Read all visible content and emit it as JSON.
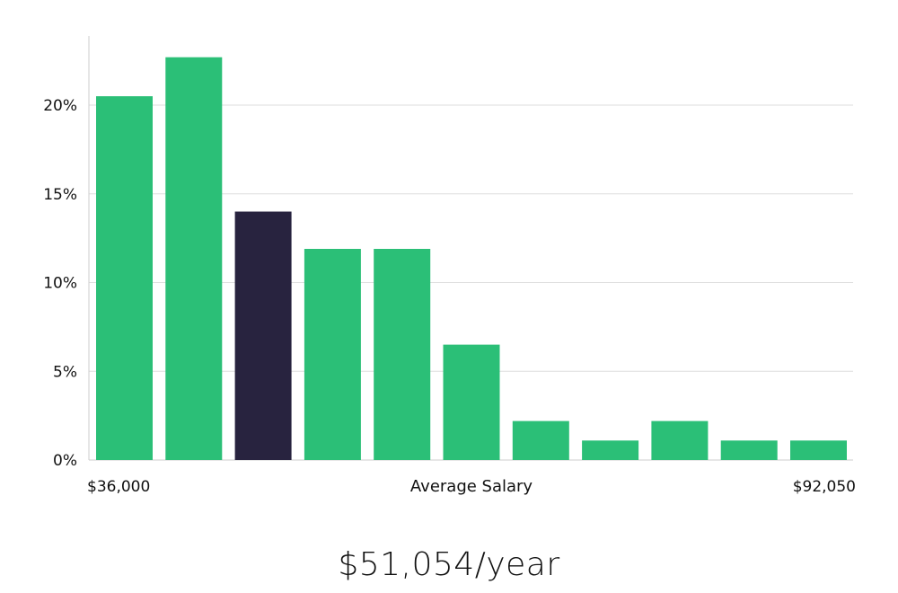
{
  "chart_data": {
    "type": "bar",
    "xlabel": "Average Salary",
    "x_range_labels": [
      "$36,000",
      "$92,050"
    ],
    "values": [
      20.5,
      22.7,
      14.0,
      11.9,
      11.9,
      6.5,
      2.2,
      1.1,
      2.2,
      1.1,
      1.1
    ],
    "highlight_index": 2,
    "ylim": [
      0,
      24
    ],
    "yticks": [
      0,
      5,
      10,
      15,
      20
    ],
    "ytick_labels": [
      "0%",
      "5%",
      "10%",
      "15%",
      "20%"
    ],
    "grid": true,
    "colors": {
      "bar": "#2bbf77",
      "highlight": "#28233f",
      "grid": "#dddddd",
      "axis": "#cccccc"
    }
  },
  "headline": "$51,054/year"
}
